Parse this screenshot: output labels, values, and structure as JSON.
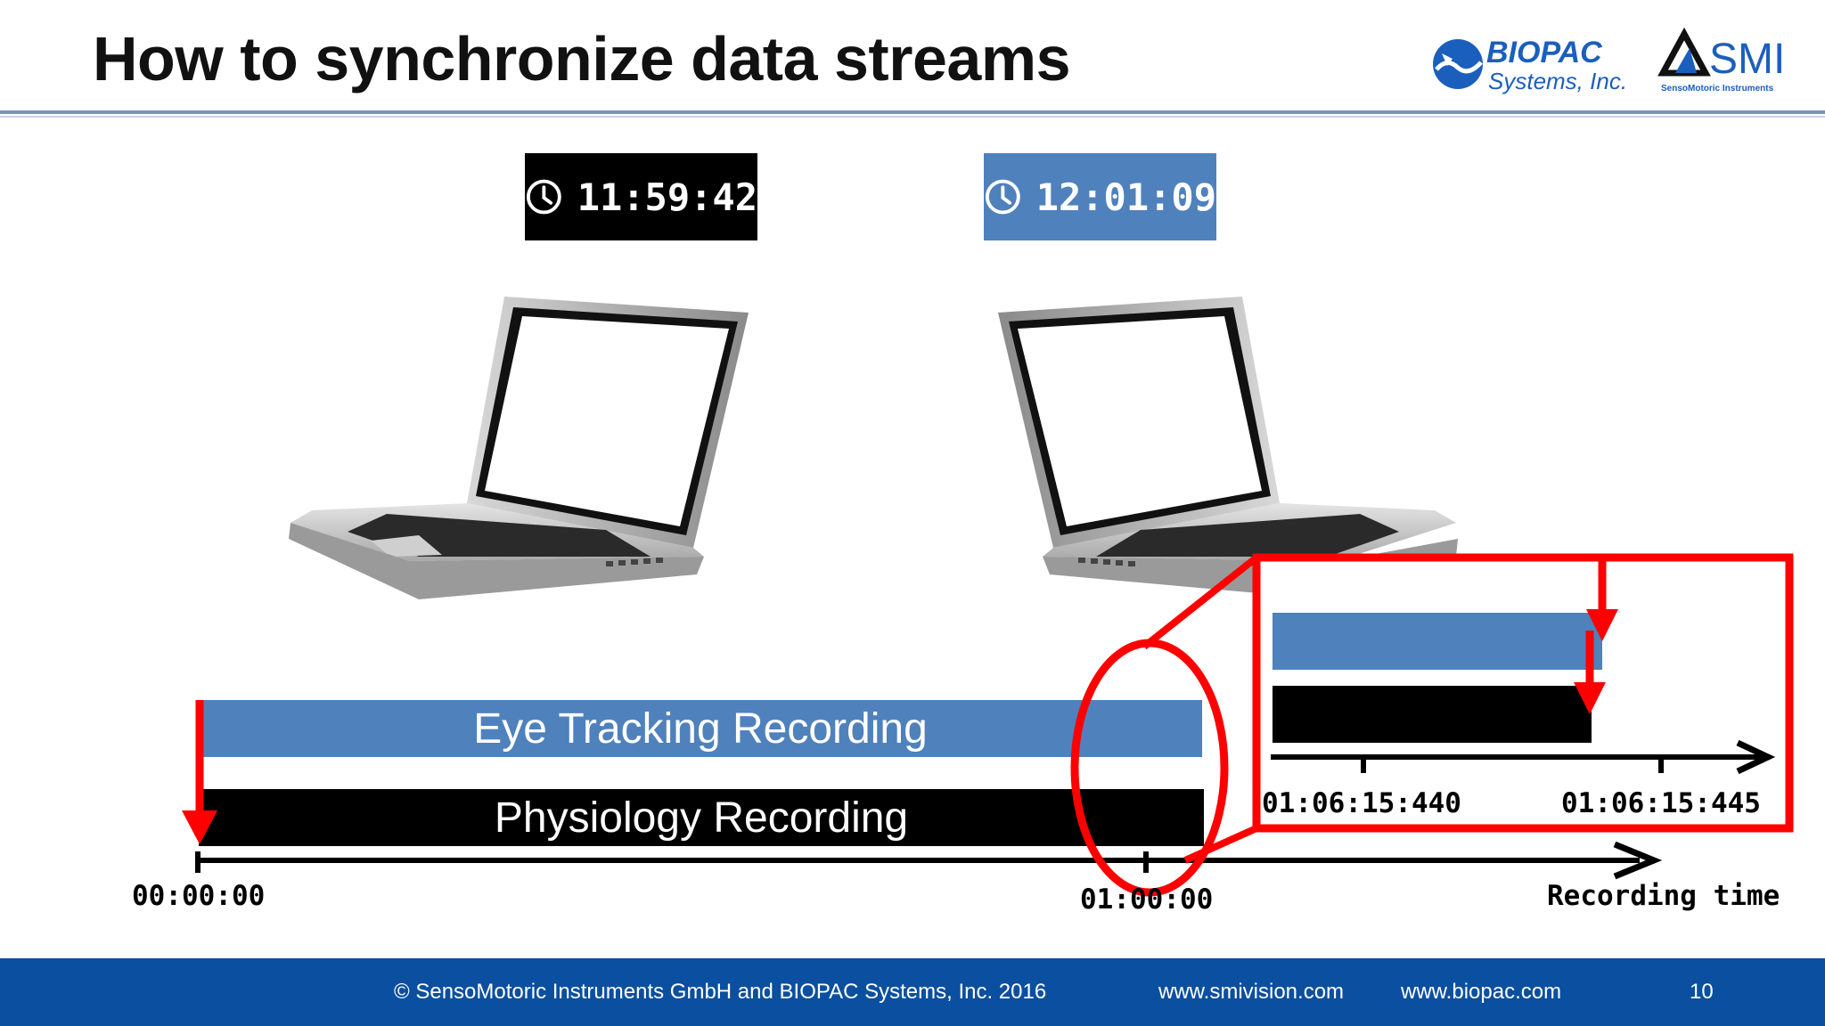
{
  "slide": {
    "title": "How to synchronize data streams",
    "page_number": "10"
  },
  "logos": {
    "biopac_line1": "BIOPAC",
    "biopac_line2": "Systems, Inc.",
    "smi_name": "SMI",
    "smi_tagline": "SensoMotoric Instruments"
  },
  "clocks": {
    "left_time": "11:59:42",
    "right_time": "12:01:09",
    "icon": "clock-icon"
  },
  "timeline": {
    "eye_label": "Eye Tracking Recording",
    "phys_label": "Physiology Recording",
    "start_label": "00:00:00",
    "end_label": "01:00:00",
    "axis_label": "Recording time"
  },
  "zoom": {
    "left_tick": "01:06:15:440",
    "right_tick": "01:06:15:445"
  },
  "footer": {
    "copyright": "© SensoMotoric Instruments GmbH and BIOPAC Systems, Inc. 2016",
    "link1": "www.smivision.com",
    "link2": "www.biopac.com"
  },
  "colors": {
    "accent_blue": "#4f81bd",
    "highlight_red": "#ff0000",
    "footer_blue": "#0a4fa0"
  }
}
